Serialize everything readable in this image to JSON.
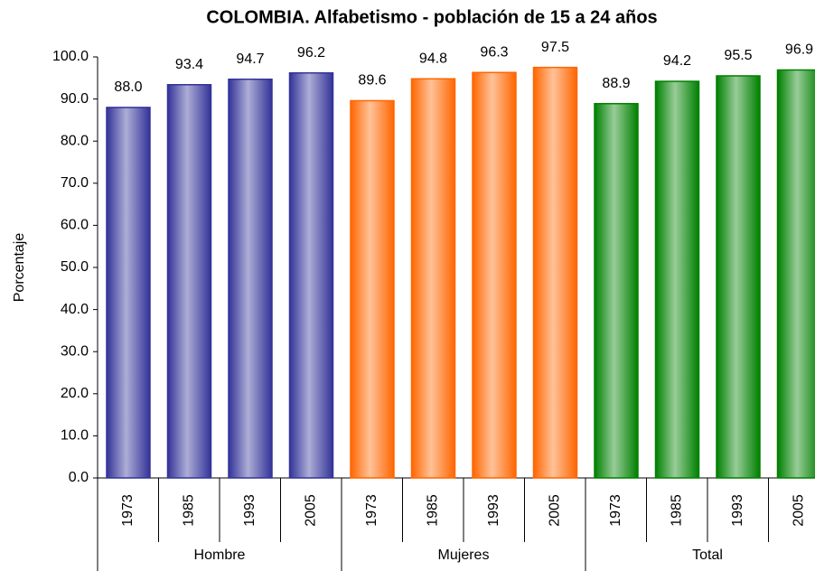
{
  "chart_data": {
    "type": "bar",
    "title": "COLOMBIA. Alfabetismo - población de 15 a 24 años",
    "y_label": "Porcentaje",
    "categories": [
      "1973",
      "1985",
      "1993",
      "2005"
    ],
    "series": [
      {
        "name": "Hombre",
        "color": "#333399",
        "values": [
          88.0,
          93.4,
          94.7,
          96.2
        ],
        "value_labels": [
          "88.0",
          "93.4",
          "94.7",
          "96.2"
        ]
      },
      {
        "name": "Mujeres",
        "color": "#ff6600",
        "values": [
          89.6,
          94.8,
          96.3,
          97.5
        ],
        "value_labels": [
          "89.6",
          "94.8",
          "96.3",
          "97.5"
        ]
      },
      {
        "name": "Total",
        "color": "#008000",
        "values": [
          88.9,
          94.2,
          95.5,
          96.9
        ],
        "value_labels": [
          "88.9",
          "94.2",
          "95.5",
          "96.9"
        ]
      }
    ],
    "ylim": [
      0,
      100
    ],
    "yticks": [
      {
        "value": 0,
        "label": "0.0"
      },
      {
        "value": 10,
        "label": "10.0"
      },
      {
        "value": 20,
        "label": "20.0"
      },
      {
        "value": 30,
        "label": "30.0"
      },
      {
        "value": 40,
        "label": "40.0"
      },
      {
        "value": 50,
        "label": "50.0"
      },
      {
        "value": 60,
        "label": "60.0"
      },
      {
        "value": 70,
        "label": "70.0"
      },
      {
        "value": 80,
        "label": "80.0"
      },
      {
        "value": 90,
        "label": "90.0"
      },
      {
        "value": 100,
        "label": "100.0"
      }
    ]
  }
}
